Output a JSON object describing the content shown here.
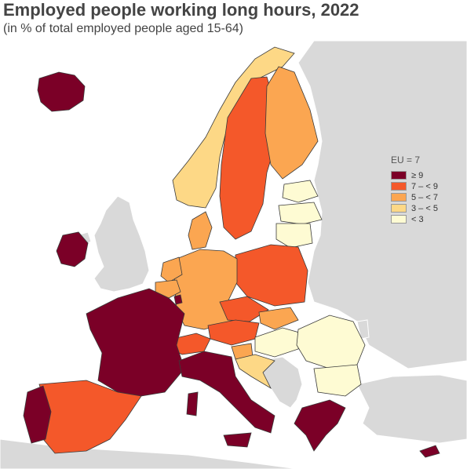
{
  "title": "Employed people working long hours, 2022",
  "subtitle": "(in % of total employed people aged 15-64)",
  "legend": {
    "title": "EU = 7",
    "items": [
      {
        "label": "≥ 9",
        "color": "#7b0027"
      },
      {
        "label": "7 – < 9",
        "color": "#f4582a"
      },
      {
        "label": "5 – < 7",
        "color": "#fba651"
      },
      {
        "label": "3 – < 5",
        "color": "#fdd886"
      },
      {
        "label": "< 3",
        "color": "#fefbd3"
      }
    ]
  },
  "colors": {
    "non_eu": "#d9d9d9",
    "sea": "#ffffff",
    "border": "#3a3a3a"
  },
  "countries": [
    {
      "id": "iceland",
      "class": "≥ 9"
    },
    {
      "id": "ireland",
      "class": "≥ 9"
    },
    {
      "id": "france",
      "class": "≥ 9"
    },
    {
      "id": "italy",
      "class": "≥ 9"
    },
    {
      "id": "portugal",
      "class": "≥ 9"
    },
    {
      "id": "greece",
      "class": "≥ 9"
    },
    {
      "id": "cyprus",
      "class": "≥ 9"
    },
    {
      "id": "luxembourg",
      "class": "≥ 9"
    },
    {
      "id": "spain",
      "class": "7 – < 9"
    },
    {
      "id": "sweden",
      "class": "7 – < 9"
    },
    {
      "id": "poland",
      "class": "7 – < 9"
    },
    {
      "id": "czechia",
      "class": "7 – < 9"
    },
    {
      "id": "austria",
      "class": "7 – < 9"
    },
    {
      "id": "switzerland",
      "class": "7 – < 9"
    },
    {
      "id": "finland",
      "class": "5 – < 7"
    },
    {
      "id": "germany",
      "class": "5 – < 7"
    },
    {
      "id": "denmark",
      "class": "5 – < 7"
    },
    {
      "id": "belgium",
      "class": "5 – < 7"
    },
    {
      "id": "netherlands",
      "class": "5 – < 7"
    },
    {
      "id": "slovakia",
      "class": "5 – < 7"
    },
    {
      "id": "slovenia",
      "class": "5 – < 7"
    },
    {
      "id": "norway",
      "class": "3 – < 5"
    },
    {
      "id": "croatia",
      "class": "3 – < 5"
    },
    {
      "id": "estonia",
      "class": "< 3"
    },
    {
      "id": "latvia",
      "class": "< 3"
    },
    {
      "id": "lithuania",
      "class": "< 3"
    },
    {
      "id": "hungary",
      "class": "< 3"
    },
    {
      "id": "romania",
      "class": "< 3"
    },
    {
      "id": "bulgaria",
      "class": "< 3"
    }
  ]
}
